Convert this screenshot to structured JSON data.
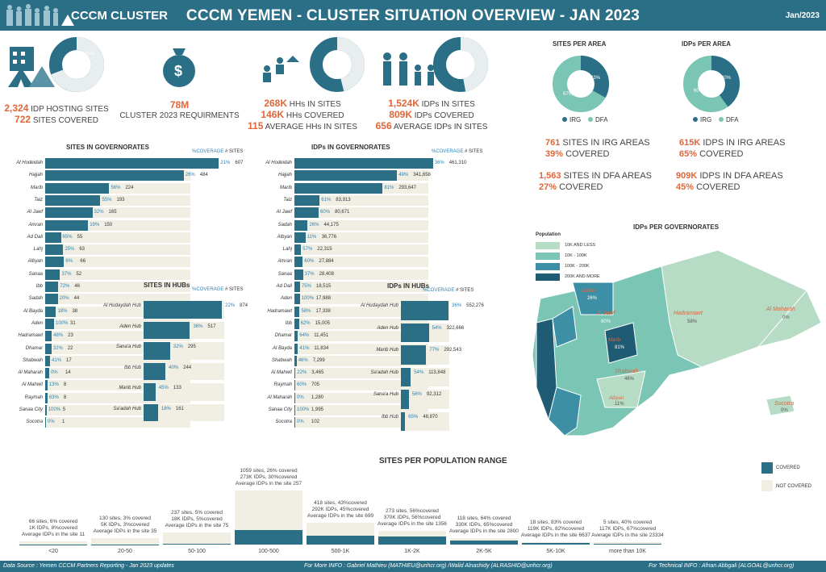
{
  "header": {
    "logo_text": "CCCM CLUSTER",
    "title": "CCCM YEMEN - CLUSTER SITUATION OVERVIEW - JAN 2023",
    "date": "Jan/2023"
  },
  "kpis": {
    "idp_hosting_sites_value": "2,324",
    "idp_hosting_sites_label": "IDP HOSTING SITES",
    "sites_covered_value": "722",
    "sites_covered_label": "SITES COVERED",
    "requirements_value": "78M",
    "requirements_label": "CLUSTER 2023 REQUIRMENTS",
    "hhs_value": "268K",
    "hhs_label": "HHs IN SITES",
    "hhs_covered_value": "146K",
    "hhs_covered_label": "HHs COVERED",
    "avg_hhs_value": "115",
    "avg_hhs_label": "AVERAGE HHs IN SITES",
    "idps_value": "1,524K",
    "idps_label": "IDPs IN SITES",
    "idps_covered_value": "809K",
    "idps_covered_label": "IDPs COVERED",
    "avg_idps_value": "656",
    "avg_idps_label": "AVERAGE IDPs IN SITES",
    "donut_sites": 31,
    "donut_sites_label": "31%",
    "donut_hhs": 54,
    "donut_hhs_label": "54%",
    "donut_idps": 53,
    "donut_idps_label": "53%"
  },
  "area": {
    "sites_title": "SITES PER AREA",
    "idps_title": "IDPs PER AREA",
    "sites_irg_pct": 33,
    "sites_dfa_pct": 67,
    "sites_irg_label": "33%",
    "sites_dfa_label": "67%",
    "idps_irg_pct": 40,
    "idps_dfa_pct": 60,
    "idps_irg_label": "40%",
    "idps_dfa_label": "60%",
    "legend_irg": "IRG",
    "legend_dfa": "DFA",
    "s1v": "761",
    "s1t": "SITES IN IRG AREAS",
    "s1c": "39%",
    "s1ct": "COVERED",
    "s2v": "1,563",
    "s2t": "SITES IN DFA AREAS",
    "s2c": "27%",
    "s2ct": "COVERED",
    "i1v": "615K",
    "i1t": "IDPS IN IRG AREAS",
    "i1c": "65%",
    "i1ct": "COVERED",
    "i2v": "909K",
    "i2t": "IDPS IN DFA AREAS",
    "i2c": "45%",
    "i2ct": "COVERED"
  },
  "colors": {
    "primary": "#2b6f87",
    "accent": "#e0663a",
    "light": "#f1efe3",
    "teal": "#7ac5b4",
    "pale": "#b7dcc5"
  },
  "chart_data": [
    {
      "type": "bar",
      "title": "SITES IN GOVERNORATES",
      "legend": [
        "%COVERAGE",
        "# SITES"
      ],
      "categories": [
        "Al Hodeidah",
        "Hajjah",
        "Marib",
        "Taiz",
        "Al Jawf",
        "Amran",
        "Ad Dali",
        "Lahj",
        "Albyan",
        "Sanaa",
        "Ibb",
        "Sadah",
        "Al Bayda",
        "Aden",
        "Hadramawt",
        "Dhamar",
        "Shabwah",
        "Al Maharah",
        "Al Mahwit",
        "Raymah",
        "Sanaa City",
        "Socotra"
      ],
      "values": [
        607,
        484,
        224,
        193,
        165,
        150,
        55,
        63,
        66,
        52,
        46,
        44,
        38,
        31,
        23,
        22,
        17,
        14,
        8,
        8,
        5,
        1
      ],
      "coverage": [
        "21%",
        "26%",
        "56%",
        "55%",
        "32%",
        "19%",
        "65%",
        "25%",
        "6%",
        "37%",
        "72%",
        "20%",
        "18%",
        "100%",
        "48%",
        "32%",
        "41%",
        "0%",
        "13%",
        "63%",
        "100%",
        "0%"
      ],
      "xlim": [
        0,
        620
      ]
    },
    {
      "type": "bar",
      "title": "IDPs IN GOVERNORATES",
      "legend": [
        "%COVERAGE",
        "# SITES"
      ],
      "categories": [
        "Al Hodeidah",
        "Hajjah",
        "Marib",
        "Taiz",
        "Al Jawf",
        "Sadah",
        "Albyan",
        "Lahj",
        "Amran",
        "Sanaa",
        "Ad Dali",
        "Aden",
        "Hadramawt",
        "Ibb",
        "Dhamar",
        "Al Bayda",
        "Shabwah",
        "Al Mahwit",
        "Raymah",
        "Al Maharah",
        "Sanaa City",
        "Socotra"
      ],
      "values": [
        461310,
        341658,
        293647,
        83913,
        80671,
        44175,
        36776,
        22315,
        27884,
        28408,
        18515,
        17988,
        17338,
        15005,
        11451,
        11834,
        7299,
        3465,
        705,
        1280,
        1995,
        102
      ],
      "value_labels": [
        "461,310",
        "341,658",
        "293,647",
        "83,913",
        "80,671",
        "44,175",
        "36,776",
        "22,315",
        "27,884",
        "28,408",
        "18,515",
        "17,988",
        "17,338",
        "15,005",
        "11,451",
        "11,834",
        "7,299",
        "3,465",
        "705",
        "1,280",
        "1,995",
        "102"
      ],
      "coverage": [
        "36%",
        "49%",
        "81%",
        "61%",
        "60%",
        "26%",
        "11%",
        "57%",
        "60%",
        "37%",
        "75%",
        "100%",
        "58%",
        "62%",
        "64%",
        "41%",
        "46%",
        "22%",
        "60%",
        "0%",
        "100%",
        "0%"
      ],
      "xlim": [
        0,
        470000
      ]
    },
    {
      "type": "bar",
      "title": "SITES IN HUBs",
      "legend": [
        "%COVERAGE",
        "# SITES"
      ],
      "categories": [
        "Al Hudaydah Hub",
        "Aden Hub",
        "Sana'a Hub",
        "Ibb Hub",
        "Marib Hub",
        "Sa'adah Hub"
      ],
      "values": [
        874,
        517,
        295,
        244,
        133,
        161
      ],
      "coverage": [
        "22%",
        "36%",
        "32%",
        "40%",
        "45%",
        "18%"
      ],
      "xlim": [
        0,
        900
      ]
    },
    {
      "type": "bar",
      "title": "IDPs IN HUBs",
      "legend": [
        "%COVERAGE",
        "# SITES"
      ],
      "categories": [
        "Al Hudaydah Hub",
        "Aden Hub",
        "Marib Hub",
        "Sa'adah Hub",
        "Sana'a Hub",
        "Ibb Hub"
      ],
      "values": [
        552276,
        322666,
        292543,
        113848,
        92312,
        48870
      ],
      "value_labels": [
        "552,276",
        "322,666",
        "292,543",
        "113,848",
        "92,312",
        "48,870"
      ],
      "coverage": [
        "36%",
        "54%",
        "77%",
        "54%",
        "56%",
        "65%"
      ],
      "xlim": [
        0,
        560000
      ]
    },
    {
      "type": "bar",
      "title": "SITES PER POPULATION RANGE",
      "legend": [
        "COVERED",
        "NOT COVERED"
      ],
      "categories": [
        "<20",
        "20-50",
        "50-100",
        "100-500",
        "500-1K",
        "1K-2K",
        "2K-5K",
        "5K-10K",
        "more than 10K"
      ],
      "values": [
        66,
        130,
        237,
        1059,
        418,
        273,
        118,
        18,
        5
      ],
      "covered_pct": [
        6,
        3,
        5,
        26,
        43,
        56,
        64,
        83,
        40
      ],
      "notes": [
        [
          "66 sites, 6% covered",
          "1K IDPs, 8%covered",
          "Average IDPs in the site 11"
        ],
        [
          "130 sites, 3% covered",
          "5K IDPs, 3%covered",
          "Average IDPs in the site 35"
        ],
        [
          "237 sites, 5% covered",
          "18K IDPs, 5%covered",
          "Average IDPs in the site 75"
        ],
        [
          "1059 sites, 26% covered",
          "273K IDPs, 30%covered",
          "Average IDPs in the site 257"
        ],
        [
          "418 sites, 43%covered",
          "292K IDPs, 45%covered",
          "Average IDPs in the site 699"
        ],
        [
          "273 sites, 56%covered",
          "370K IDPs, 56%covered",
          "Average IDPs in the site 1356"
        ],
        [
          "118 sites, 64% covered",
          "330K IDPs, 65%covered",
          "Average IDPs in the site 2800"
        ],
        [
          "18 sites, 83% covered",
          "119K IDPs, 82%covered",
          "Average IDPs in the site 6637"
        ],
        [
          "5 sites, 40% covered",
          "117K IDPs, 67%covered",
          "Average IDPs in the site 23334"
        ]
      ]
    }
  ],
  "map": {
    "title": "IDPs PER GOVERNORATES",
    "legend_title": "Population",
    "legend": [
      "10K AND LESS",
      "10K - 100K",
      "100K - 200K",
      "200K AND MORE"
    ],
    "legend_colors": [
      "#b7dcc5",
      "#7ac5b4",
      "#3d8fa6",
      "#1f5c73"
    ],
    "labels": [
      {
        "name": "Al Jawf",
        "pct": "60%"
      },
      {
        "name": "Hadramawt",
        "pct": "58%"
      },
      {
        "name": "Al Maharah",
        "pct": "0%"
      },
      {
        "name": "Shabwah",
        "pct": "46%"
      },
      {
        "name": "Socotra",
        "pct": "0%"
      },
      {
        "name": "Marib",
        "pct": "81%"
      },
      {
        "name": "Sadah",
        "pct": "26%"
      },
      {
        "name": "Albyan",
        "pct": "11%"
      }
    ]
  },
  "footer": {
    "source": "Data Source : Yemen CCCM Partners Reporting - Jan 2023 updates",
    "info": "For More INFO : Gabriel Mathieu (MATHIEU@unhcr.org) /Walid Alnashidy (ALRASHID@unhcr.org)",
    "tech": "For Technical INFO : Afnan Abbgali (ALGOAL@unhcr.org)"
  }
}
